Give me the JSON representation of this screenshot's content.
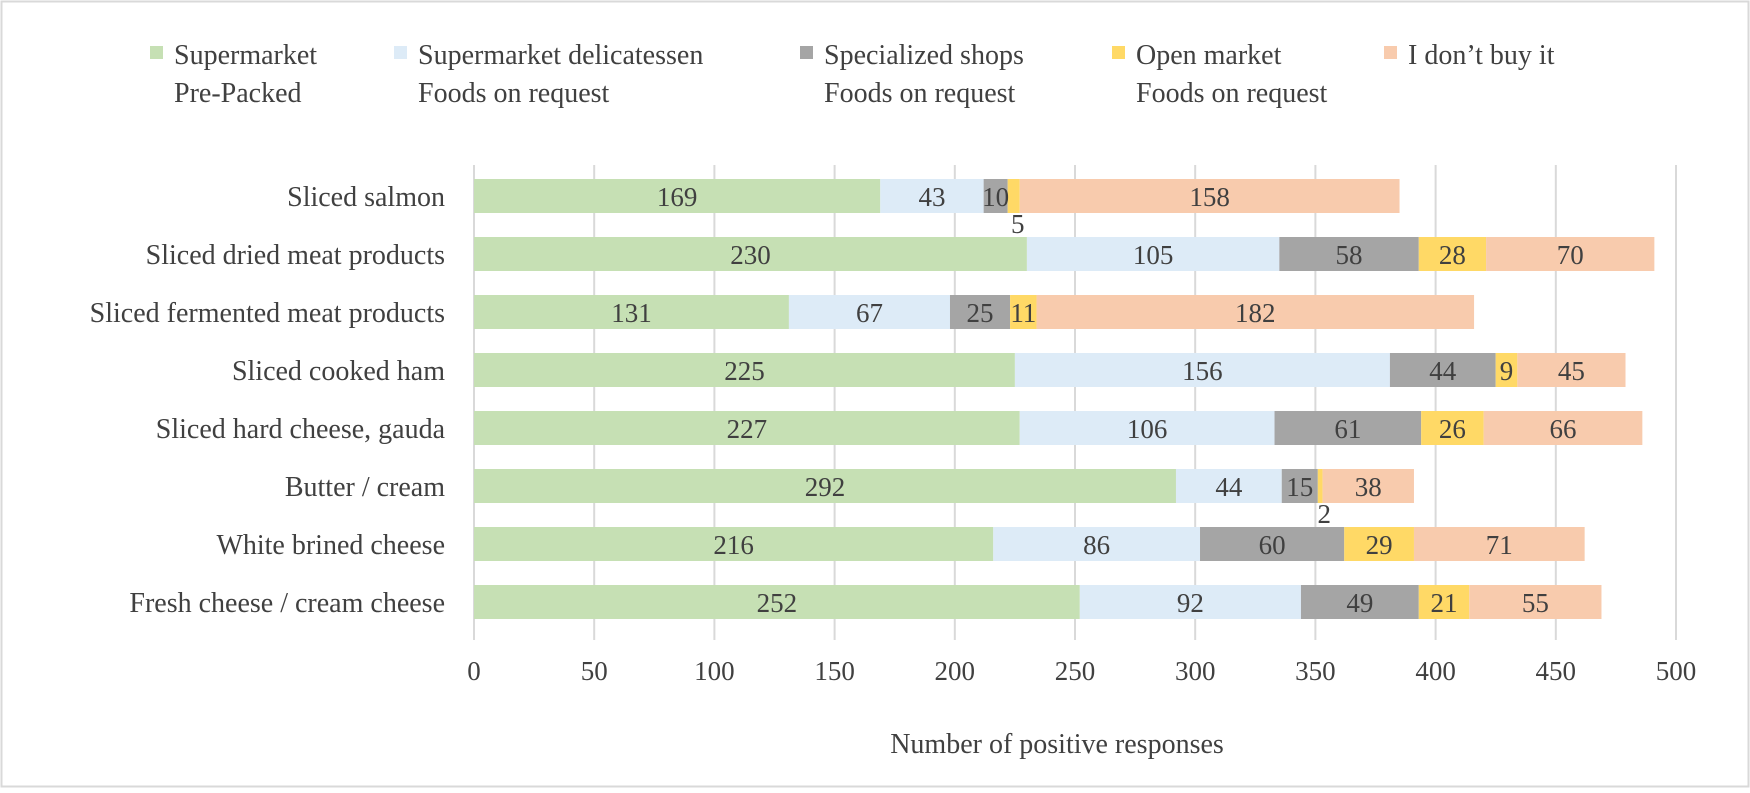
{
  "chart_data": {
    "type": "bar",
    "orientation": "horizontal",
    "stacked": true,
    "title": "",
    "xlabel": "Number of positive responses",
    "ylabel": "",
    "xlim": [
      0,
      500
    ],
    "xticks": [
      0,
      50,
      100,
      150,
      200,
      250,
      300,
      350,
      400,
      450,
      500
    ],
    "grid": true,
    "legend_position": "top",
    "categories": [
      "Sliced salmon",
      "Sliced dried meat products",
      "Sliced fermented meat products",
      "Sliced cooked ham",
      "Sliced hard cheese, gauda",
      "Butter / cream",
      "White brined cheese",
      "Fresh cheese / cream cheese"
    ],
    "series": [
      {
        "name": "Supermarket Pre-Packed",
        "legend_lines": [
          "Supermarket",
          "Pre-Packed"
        ],
        "color": "#c6e0b4",
        "values": [
          169,
          230,
          131,
          225,
          227,
          292,
          216,
          252
        ]
      },
      {
        "name": "Supermarket delicatessen Foods on request",
        "legend_lines": [
          "Supermarket delicatessen",
          "Foods on request"
        ],
        "color": "#ddebf7",
        "values": [
          43,
          105,
          67,
          156,
          106,
          44,
          86,
          92
        ]
      },
      {
        "name": "Specialized shops Foods on request",
        "legend_lines": [
          "Specialized shops",
          "Foods on request"
        ],
        "color": "#a5a5a5",
        "values": [
          10,
          58,
          25,
          44,
          61,
          15,
          60,
          49
        ]
      },
      {
        "name": "Open market Foods on request",
        "legend_lines": [
          "Open market",
          "Foods on request"
        ],
        "color": "#ffd966",
        "values": [
          5,
          28,
          11,
          9,
          26,
          2,
          29,
          21
        ]
      },
      {
        "name": "I don’t buy it",
        "legend_lines": [
          "I don’t buy it"
        ],
        "color": "#f8cbad",
        "values": [
          158,
          70,
          182,
          45,
          66,
          38,
          71,
          55
        ]
      }
    ],
    "colors": {
      "grid": "#d9d9d9",
      "text": "#404040",
      "border": "#d9d9d9"
    }
  }
}
